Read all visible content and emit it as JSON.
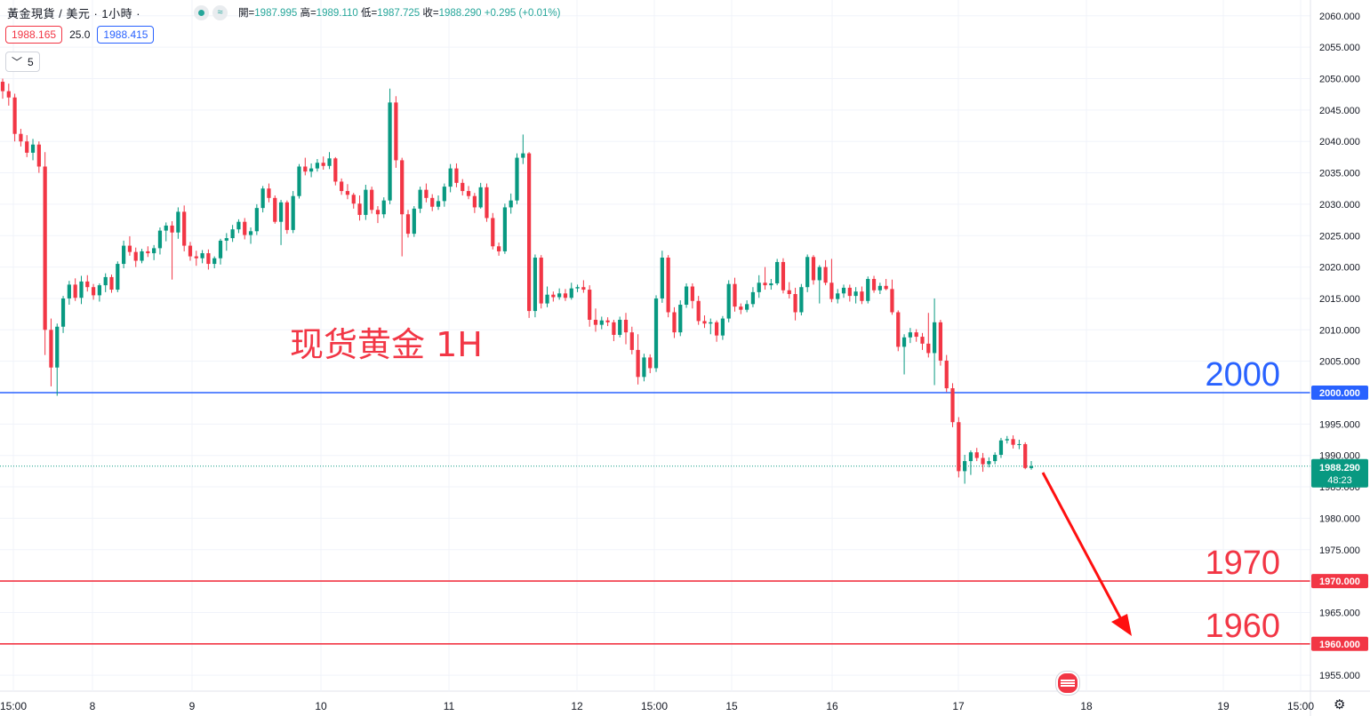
{
  "header": {
    "symbol": "黃金現貨 / 美元 · 1小時 ·",
    "ohlc_open_label": "開=",
    "ohlc_open": "1987.995",
    "ohlc_high_label": "高=",
    "ohlc_high": "1989.110",
    "ohlc_low_label": "低=",
    "ohlc_low": "1987.725",
    "ohlc_close_label": "收=",
    "ohlc_close": "1988.290",
    "ohlc_change": "+0.295 (+0.01%)"
  },
  "quotes": {
    "sell": "1988.165",
    "spread": "25.0",
    "buy": "1988.415"
  },
  "indicator": {
    "collapse_icon": "chevron-down-icon",
    "count": "5"
  },
  "annotation": {
    "title": "现货黄金 1H"
  },
  "levels": [
    {
      "text": "2000",
      "value": 2000,
      "axis_label": "2000.000",
      "color": "#2962ff"
    },
    {
      "text": "1970",
      "value": 1970,
      "axis_label": "1970.000",
      "color": "#f23645"
    },
    {
      "text": "1960",
      "value": 1960,
      "axis_label": "1960.000",
      "color": "#f23645"
    }
  ],
  "current_price": {
    "value": 1988.29,
    "label": "1988.290",
    "countdown": "48:23",
    "color": "#089981"
  },
  "colors": {
    "up": "#089981",
    "down": "#f23645",
    "grid": "#f0f3fa",
    "axis_text": "#131722"
  },
  "chart_data": {
    "type": "candlestick",
    "ylim": [
      1953,
      2062
    ],
    "y_ticks": [
      "2060.000",
      "2055.000",
      "2050.000",
      "2045.000",
      "2040.000",
      "2035.000",
      "2030.000",
      "2025.000",
      "2020.000",
      "2015.000",
      "2010.000",
      "2005.000",
      "2000.000",
      "1995.000",
      "1990.000",
      "1985.000",
      "1980.000",
      "1975.000",
      "1970.000",
      "1965.000",
      "1960.000",
      "1955.000"
    ],
    "x_ticks": [
      "15:00",
      "8",
      "9",
      "10",
      "11",
      "12",
      "15:00",
      "15",
      "16",
      "17",
      "18",
      "19",
      "15:00"
    ],
    "candles": [
      [
        2049.5,
        2050.0,
        2046.8,
        2048.0
      ],
      [
        2048.0,
        2049.2,
        2045.7,
        2047.0
      ],
      [
        2047.0,
        2047.6,
        2040.0,
        2041.2
      ],
      [
        2041.2,
        2042.0,
        2039.2,
        2040.0
      ],
      [
        2040.0,
        2041.0,
        2037.5,
        2038.2
      ],
      [
        2038.2,
        2040.4,
        2037.0,
        2039.5
      ],
      [
        2039.5,
        2040.0,
        2035.0,
        2036.0
      ],
      [
        2036.0,
        2038.3,
        2006.0,
        2010.0
      ],
      [
        2010.0,
        2011.8,
        2001.0,
        2004.0
      ],
      [
        2004.0,
        2011.0,
        1999.5,
        2010.5
      ],
      [
        2010.5,
        2015.4,
        2009.5,
        2015.0
      ],
      [
        2015.0,
        2017.8,
        2014.0,
        2017.2
      ],
      [
        2017.2,
        2018.2,
        2014.6,
        2015.1
      ],
      [
        2015.1,
        2018.6,
        2014.1,
        2017.7
      ],
      [
        2017.7,
        2018.7,
        2016.1,
        2016.8
      ],
      [
        2016.8,
        2017.3,
        2014.8,
        2015.5
      ],
      [
        2015.5,
        2017.4,
        2014.5,
        2017.1
      ],
      [
        2017.1,
        2019.0,
        2016.0,
        2018.4
      ],
      [
        2018.4,
        2018.8,
        2015.9,
        2016.4
      ],
      [
        2016.4,
        2020.9,
        2016.0,
        2020.5
      ],
      [
        2020.5,
        2024.2,
        2019.8,
        2023.4
      ],
      [
        2023.4,
        2024.9,
        2021.8,
        2022.4
      ],
      [
        2022.4,
        2023.1,
        2020.0,
        2021.0
      ],
      [
        2021.0,
        2022.9,
        2020.6,
        2022.5
      ],
      [
        2022.5,
        2023.3,
        2021.6,
        2022.2
      ],
      [
        2022.2,
        2023.5,
        2021.1,
        2023.0
      ],
      [
        2023.0,
        2026.3,
        2022.0,
        2025.8
      ],
      [
        2025.8,
        2027.1,
        2024.1,
        2026.6
      ],
      [
        2026.6,
        2027.3,
        2018.0,
        2025.5
      ],
      [
        2025.5,
        2029.5,
        2024.5,
        2028.8
      ],
      [
        2028.8,
        2029.8,
        2022.5,
        2023.4
      ],
      [
        2023.4,
        2024.0,
        2021.0,
        2021.7
      ],
      [
        2021.7,
        2022.6,
        2020.2,
        2021.4
      ],
      [
        2021.4,
        2022.7,
        2020.6,
        2022.2
      ],
      [
        2022.2,
        2022.8,
        2019.6,
        2020.5
      ],
      [
        2020.5,
        2021.7,
        2019.8,
        2021.4
      ],
      [
        2021.4,
        2024.5,
        2020.4,
        2024.2
      ],
      [
        2024.2,
        2025.4,
        2022.6,
        2024.6
      ],
      [
        2024.6,
        2026.7,
        2024.0,
        2026.0
      ],
      [
        2026.0,
        2027.6,
        2025.4,
        2027.2
      ],
      [
        2027.2,
        2027.8,
        2024.4,
        2025.1
      ],
      [
        2025.1,
        2026.3,
        2023.7,
        2025.7
      ],
      [
        2025.7,
        2030.0,
        2025.1,
        2029.4
      ],
      [
        2029.4,
        2032.9,
        2028.7,
        2032.5
      ],
      [
        2032.5,
        2033.3,
        2030.3,
        2031.0
      ],
      [
        2031.0,
        2031.4,
        2026.9,
        2027.2
      ],
      [
        2027.2,
        2030.7,
        2023.5,
        2030.3
      ],
      [
        2030.3,
        2030.6,
        2025.3,
        2025.9
      ],
      [
        2025.9,
        2032.1,
        2025.4,
        2031.3
      ],
      [
        2031.3,
        2036.4,
        2030.9,
        2036.0
      ],
      [
        2036.0,
        2037.4,
        2034.6,
        2035.2
      ],
      [
        2035.2,
        2036.5,
        2034.3,
        2035.7
      ],
      [
        2035.7,
        2037.2,
        2035.2,
        2036.6
      ],
      [
        2036.6,
        2037.6,
        2035.5,
        2036.1
      ],
      [
        2036.1,
        2038.3,
        2035.6,
        2037.3
      ],
      [
        2037.3,
        2037.5,
        2033.0,
        2033.6
      ],
      [
        2033.6,
        2034.1,
        2031.5,
        2032.1
      ],
      [
        2032.1,
        2033.2,
        2030.8,
        2031.5
      ],
      [
        2031.5,
        2031.8,
        2029.3,
        2030.1
      ],
      [
        2030.1,
        2031.4,
        2027.4,
        2028.3
      ],
      [
        2028.3,
        2033.1,
        2027.5,
        2032.3
      ],
      [
        2032.3,
        2032.8,
        2028.5,
        2029.1
      ],
      [
        2029.1,
        2029.7,
        2027.0,
        2028.4
      ],
      [
        2028.4,
        2031.1,
        2027.8,
        2030.6
      ],
      [
        2030.6,
        2048.4,
        2030.0,
        2046.2
      ],
      [
        2046.2,
        2047.2,
        2035.8,
        2037.0
      ],
      [
        2037.0,
        2037.4,
        2021.7,
        2028.4
      ],
      [
        2028.4,
        2029.1,
        2024.7,
        2025.3
      ],
      [
        2025.3,
        2029.7,
        2024.8,
        2029.3
      ],
      [
        2029.3,
        2032.8,
        2028.6,
        2032.3
      ],
      [
        2032.3,
        2033.3,
        2030.3,
        2031.0
      ],
      [
        2031.0,
        2031.6,
        2028.9,
        2029.6
      ],
      [
        2029.6,
        2031.4,
        2029.1,
        2030.5
      ],
      [
        2030.5,
        2033.3,
        2029.6,
        2032.8
      ],
      [
        2032.8,
        2036.4,
        2031.9,
        2035.7
      ],
      [
        2035.7,
        2036.5,
        2032.7,
        2033.4
      ],
      [
        2033.4,
        2034.0,
        2031.4,
        2032.1
      ],
      [
        2032.1,
        2032.9,
        2030.8,
        2031.3
      ],
      [
        2031.3,
        2031.8,
        2028.6,
        2029.5
      ],
      [
        2029.5,
        2033.4,
        2029.3,
        2032.7
      ],
      [
        2032.7,
        2033.3,
        2027.2,
        2027.8
      ],
      [
        2027.8,
        2028.6,
        2022.8,
        2023.3
      ],
      [
        2023.3,
        2023.9,
        2021.8,
        2022.5
      ],
      [
        2022.5,
        2030.1,
        2022.1,
        2029.5
      ],
      [
        2029.5,
        2031.7,
        2028.5,
        2030.6
      ],
      [
        2030.6,
        2038.1,
        2030.0,
        2037.4
      ],
      [
        2037.4,
        2041.1,
        2036.4,
        2038.1
      ],
      [
        2038.1,
        2038.3,
        2011.9,
        2013.0
      ],
      [
        2013.0,
        2022.0,
        2012.0,
        2021.5
      ],
      [
        2021.5,
        2021.9,
        2013.4,
        2014.2
      ],
      [
        2014.2,
        2016.9,
        2013.6,
        2015.6
      ],
      [
        2015.6,
        2016.1,
        2014.5,
        2015.2
      ],
      [
        2015.2,
        2016.6,
        2014.8,
        2015.8
      ],
      [
        2015.8,
        2016.5,
        2014.6,
        2015.1
      ],
      [
        2015.1,
        2017.5,
        2014.8,
        2016.6
      ],
      [
        2016.6,
        2017.2,
        2016.0,
        2016.8
      ],
      [
        2016.8,
        2017.9,
        2015.9,
        2016.4
      ],
      [
        2016.4,
        2017.1,
        2010.5,
        2011.6
      ],
      [
        2011.6,
        2013.4,
        2009.7,
        2010.8
      ],
      [
        2010.8,
        2012.1,
        2010.1,
        2011.5
      ],
      [
        2011.5,
        2012.0,
        2010.6,
        2011.2
      ],
      [
        2011.2,
        2011.6,
        2008.2,
        2009.2
      ],
      [
        2009.2,
        2012.1,
        2008.8,
        2011.6
      ],
      [
        2011.6,
        2012.7,
        2007.7,
        2009.6
      ],
      [
        2009.6,
        2010.5,
        2006.1,
        2006.8
      ],
      [
        2006.8,
        2009.3,
        2001.3,
        2002.5
      ],
      [
        2002.5,
        2006.2,
        2001.8,
        2005.6
      ],
      [
        2005.6,
        2006.1,
        2003.1,
        2003.9
      ],
      [
        2003.9,
        2015.5,
        2003.3,
        2015.0
      ],
      [
        2015.0,
        2022.6,
        2014.3,
        2021.5
      ],
      [
        2021.5,
        2021.9,
        2012.0,
        2012.8
      ],
      [
        2012.8,
        2013.6,
        2008.7,
        2009.6
      ],
      [
        2009.6,
        2014.7,
        2009.0,
        2014.0
      ],
      [
        2014.0,
        2017.4,
        2013.5,
        2016.9
      ],
      [
        2016.9,
        2017.4,
        2013.4,
        2014.6
      ],
      [
        2014.6,
        2015.4,
        2010.8,
        2011.4
      ],
      [
        2011.4,
        2012.3,
        2010.3,
        2011.0
      ],
      [
        2011.0,
        2011.8,
        2009.3,
        2011.2
      ],
      [
        2011.2,
        2011.5,
        2008.1,
        2009.1
      ],
      [
        2009.1,
        2012.2,
        2008.4,
        2011.8
      ],
      [
        2011.8,
        2017.9,
        2011.2,
        2017.3
      ],
      [
        2017.3,
        2018.3,
        2012.9,
        2013.7
      ],
      [
        2013.7,
        2014.2,
        2012.5,
        2013.2
      ],
      [
        2013.2,
        2014.7,
        2012.8,
        2014.1
      ],
      [
        2014.1,
        2016.8,
        2013.6,
        2016.0
      ],
      [
        2016.0,
        2018.7,
        2015.1,
        2017.5
      ],
      [
        2017.5,
        2020.0,
        2016.4,
        2017.1
      ],
      [
        2017.1,
        2018.1,
        2016.4,
        2017.4
      ],
      [
        2017.4,
        2021.3,
        2017.1,
        2020.8
      ],
      [
        2020.8,
        2021.4,
        2015.8,
        2016.3
      ],
      [
        2016.3,
        2017.6,
        2015.0,
        2015.7
      ],
      [
        2015.7,
        2016.7,
        2011.5,
        2012.8
      ],
      [
        2012.8,
        2017.3,
        2012.3,
        2016.8
      ],
      [
        2016.8,
        2022.0,
        2016.0,
        2021.6
      ],
      [
        2021.6,
        2021.9,
        2017.2,
        2017.9
      ],
      [
        2017.9,
        2020.3,
        2014.2,
        2020.0
      ],
      [
        2020.0,
        2021.1,
        2017.1,
        2017.5
      ],
      [
        2017.5,
        2021.3,
        2014.4,
        2014.9
      ],
      [
        2014.9,
        2016.5,
        2014.2,
        2015.8
      ],
      [
        2015.8,
        2017.2,
        2015.1,
        2016.7
      ],
      [
        2016.7,
        2017.2,
        2014.5,
        2015.4
      ],
      [
        2015.4,
        2016.8,
        2014.2,
        2016.1
      ],
      [
        2016.1,
        2016.9,
        2014.1,
        2014.6
      ],
      [
        2014.6,
        2018.5,
        2014.2,
        2018.1
      ],
      [
        2018.1,
        2018.6,
        2015.9,
        2016.3
      ],
      [
        2016.3,
        2017.5,
        2015.7,
        2017.0
      ],
      [
        2017.0,
        2018.1,
        2016.3,
        2016.5
      ],
      [
        2016.5,
        2018.0,
        2012.4,
        2012.8
      ],
      [
        2012.8,
        2013.1,
        2006.6,
        2007.3
      ],
      [
        2007.3,
        2009.3,
        2002.9,
        2008.8
      ],
      [
        2008.8,
        2010.3,
        2007.9,
        2009.6
      ],
      [
        2009.6,
        2010.1,
        2008.1,
        2008.9
      ],
      [
        2008.9,
        2009.5,
        2006.8,
        2007.8
      ],
      [
        2007.8,
        2012.7,
        2005.6,
        2006.3
      ],
      [
        2006.3,
        2015.0,
        2001.2,
        2011.2
      ],
      [
        2011.2,
        2011.6,
        2004.3,
        2005.1
      ],
      [
        2005.1,
        2006.0,
        2000.1,
        2000.7
      ],
      [
        2000.7,
        2001.5,
        1994.5,
        1995.3
      ],
      [
        1995.3,
        1996.1,
        1986.5,
        1987.5
      ],
      [
        1987.5,
        1990.1,
        1985.5,
        1989.1
      ],
      [
        1989.1,
        1990.8,
        1986.9,
        1990.5
      ],
      [
        1990.5,
        1991.2,
        1989.1,
        1989.6
      ],
      [
        1989.6,
        1990.4,
        1987.4,
        1988.6
      ],
      [
        1988.6,
        1989.7,
        1988.1,
        1989.1
      ],
      [
        1989.1,
        1990.5,
        1988.6,
        1990.1
      ],
      [
        1990.1,
        1992.8,
        1989.6,
        1992.4
      ],
      [
        1992.4,
        1993.1,
        1991.9,
        1992.6
      ],
      [
        1992.6,
        1993.2,
        1991.1,
        1991.7
      ],
      [
        1991.7,
        1992.5,
        1991.0,
        1991.8
      ],
      [
        1991.8,
        1992.1,
        1987.8,
        1988.0
      ],
      [
        1987.995,
        1989.11,
        1987.725,
        1988.29
      ]
    ]
  }
}
